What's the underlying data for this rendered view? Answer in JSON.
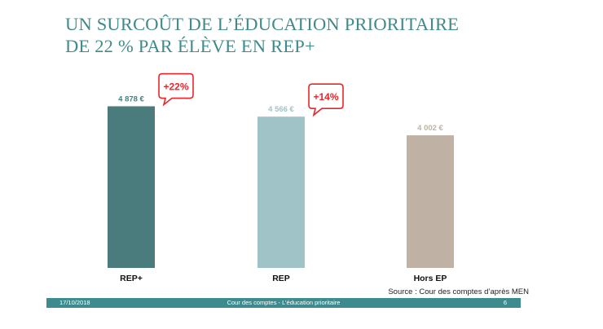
{
  "slide": {
    "title_line1": "UN SURCOÛT DE L’ÉDUCATION PRIORITAIRE",
    "title_line2": "DE 22 % PAR ÉLÈVE EN REP+",
    "source": "Source : Cour des comptes d’après MEN",
    "footer": {
      "date": "17/10/2018",
      "center": "Cour des comptes - L’éducation prioritaire",
      "page": "6"
    }
  },
  "chart_data": {
    "type": "bar",
    "categories": [
      "REP+",
      "REP",
      "Hors EP"
    ],
    "values": [
      4878,
      4566,
      4002
    ],
    "value_labels": [
      "4 878 €",
      "4 566 €",
      "4 002 €"
    ],
    "colors": [
      "#4a7c7d",
      "#a0c3c8",
      "#bfb2a5"
    ],
    "label_colors": [
      "#4a7c7d",
      "#a0c3c8",
      "#bfb2a5"
    ],
    "ylim": [
      0,
      5800
    ],
    "grid": false,
    "callouts": [
      {
        "category": "REP+",
        "text": "+22%"
      },
      {
        "category": "REP",
        "text": "+14%"
      }
    ],
    "callout_color": "#e8262a"
  }
}
